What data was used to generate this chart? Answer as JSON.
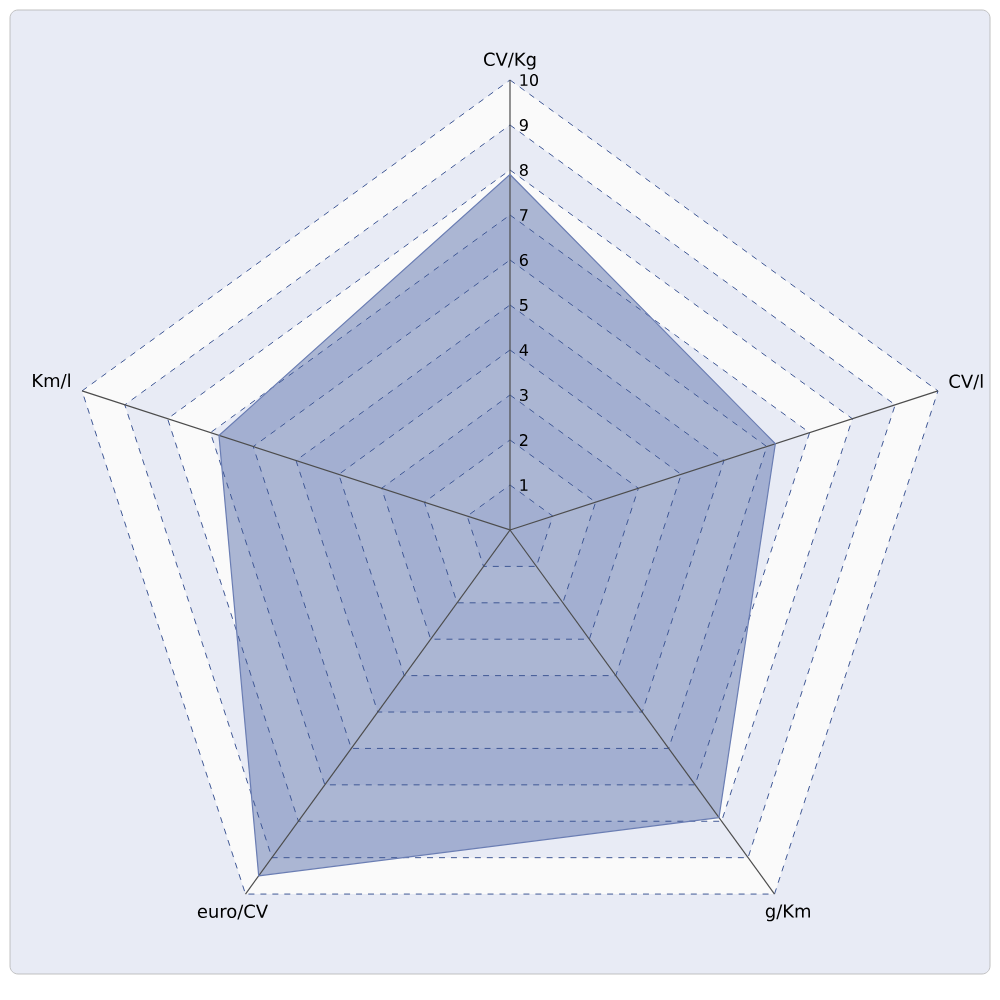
{
  "chart_data": {
    "type": "radar",
    "categories": [
      "CV/Kg",
      "CV/l",
      "g/Km",
      "euro/CV",
      "Km/l"
    ],
    "series": [
      {
        "color": "#6a7db3",
        "values": [
          7.9,
          6.2,
          7.9,
          9.5,
          6.8
        ]
      }
    ],
    "ylim": [
      0,
      10
    ],
    "yticks": [
      1,
      2,
      3,
      4,
      5,
      6,
      7,
      8,
      9,
      10
    ],
    "grid": true,
    "marker": "none"
  }
}
